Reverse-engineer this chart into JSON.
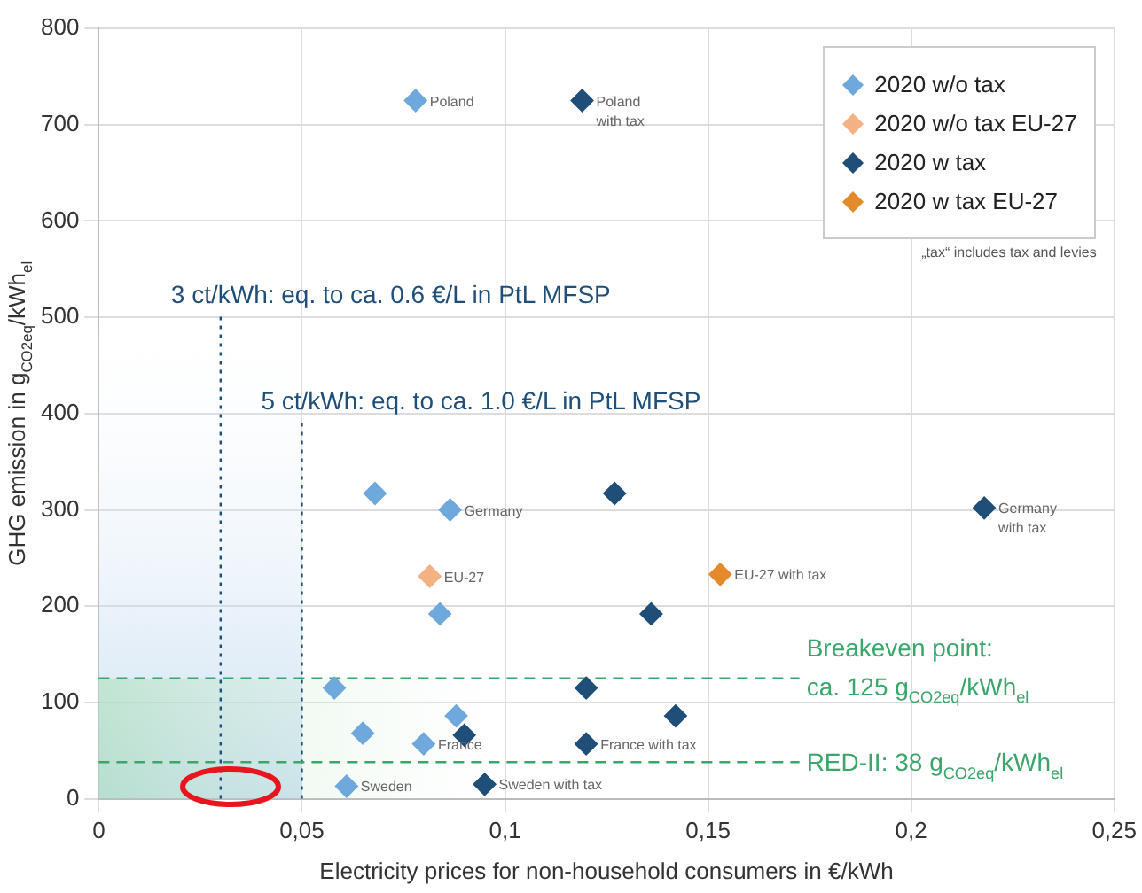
{
  "chart_data": {
    "type": "scatter",
    "xlabel": "Electricity prices for non-household consumers in €/kWh",
    "ylabel": "GHG emission in g$_{CO2eq}$/kWh$_{el}$",
    "xlim": [
      0,
      0.25
    ],
    "xticks": [
      0,
      {
        "value": 0.05,
        "label": "0,05"
      },
      {
        "value": 0.1,
        "label": "0,1"
      },
      {
        "value": 0.15,
        "label": "0,15"
      },
      {
        "value": 0.2,
        "label": "0,2"
      },
      {
        "value": 0.25,
        "label": "0,25"
      }
    ],
    "ylim": [
      0,
      800
    ],
    "yticks": [
      0,
      100,
      200,
      300,
      400,
      500,
      600,
      700,
      800
    ],
    "grid": true,
    "legend": "top right",
    "marker": "diamond",
    "series": [
      {
        "name": "2020 w/o tax",
        "color": "#6fa8dc",
        "x": [
          0.078,
          0.068,
          0.0865,
          0.084,
          0.058,
          0.088,
          0.065,
          0.08,
          0.061
        ],
        "values": [
          725,
          317,
          300,
          192,
          115,
          86,
          68,
          57,
          13
        ]
      },
      {
        "name": "2020 w/o tax EU-27",
        "color": "#f4b183",
        "x": [
          0.0815
        ],
        "values": [
          231
        ]
      },
      {
        "name": "2020 w tax",
        "color": "#1f4e79",
        "x": [
          0.119,
          0.127,
          0.136,
          0.218,
          0.12,
          0.142,
          0.09,
          0.12,
          0.095
        ],
        "values": [
          725,
          317,
          192,
          302,
          115,
          86,
          66,
          57,
          15
        ]
      },
      {
        "name": "2020 w tax EU-27",
        "color": "#e38b2c",
        "x": [
          0.153
        ],
        "values": [
          233
        ]
      }
    ],
    "ref_lines": [
      {
        "axis": "x",
        "value": 0.03,
        "label": "3 ct/kWh: eq. to ca. 0.6 €/L in PtL MFSP",
        "color": "#1f4e79",
        "line_style": "dotted"
      },
      {
        "axis": "x",
        "value": 0.05,
        "label": "5 ct/kWh: eq. to ca. 1.0 €/L in PtL MFSP",
        "color": "#1f4e79",
        "line_style": "dotted"
      },
      {
        "axis": "y",
        "value": 125,
        "label": "Breakeven point:\nca. 125 g$_{CO2eq}$/kWh$_{el}$",
        "color": "#3aa66a",
        "line_style": "dashed"
      },
      {
        "axis": "y",
        "value": 38,
        "label": "RED-II: 38 g$_{CO2eq}$/kWh$_{el}$",
        "color": "#3aa66a",
        "line_style": "dashed"
      }
    ],
    "bands": [
      {
        "axis": "x",
        "from": 0,
        "to": 0.05,
        "color": "#9dc3e6"
      },
      {
        "axis": "y",
        "from": 0,
        "to": 125,
        "color": "#a9dfb4"
      }
    ],
    "annotations": [
      {
        "text": "Poland",
        "x": 0.078,
        "y": 725
      },
      {
        "text": "Poland\nwith tax",
        "x": 0.119,
        "y": 725
      },
      {
        "text": "Germany",
        "x": 0.0865,
        "y": 300
      },
      {
        "text": "Germany\nwith tax",
        "x": 0.218,
        "y": 302
      },
      {
        "text": "EU-27",
        "x": 0.0815,
        "y": 231
      },
      {
        "text": "EU-27 with tax",
        "x": 0.153,
        "y": 233
      },
      {
        "text": "France",
        "x": 0.08,
        "y": 57
      },
      {
        "text": "France with tax",
        "x": 0.12,
        "y": 57
      },
      {
        "text": "Sweden",
        "x": 0.061,
        "y": 13
      },
      {
        "text": "Sweden with tax",
        "x": 0.095,
        "y": 15
      },
      "„tax“ includes tax and levies"
    ]
  }
}
